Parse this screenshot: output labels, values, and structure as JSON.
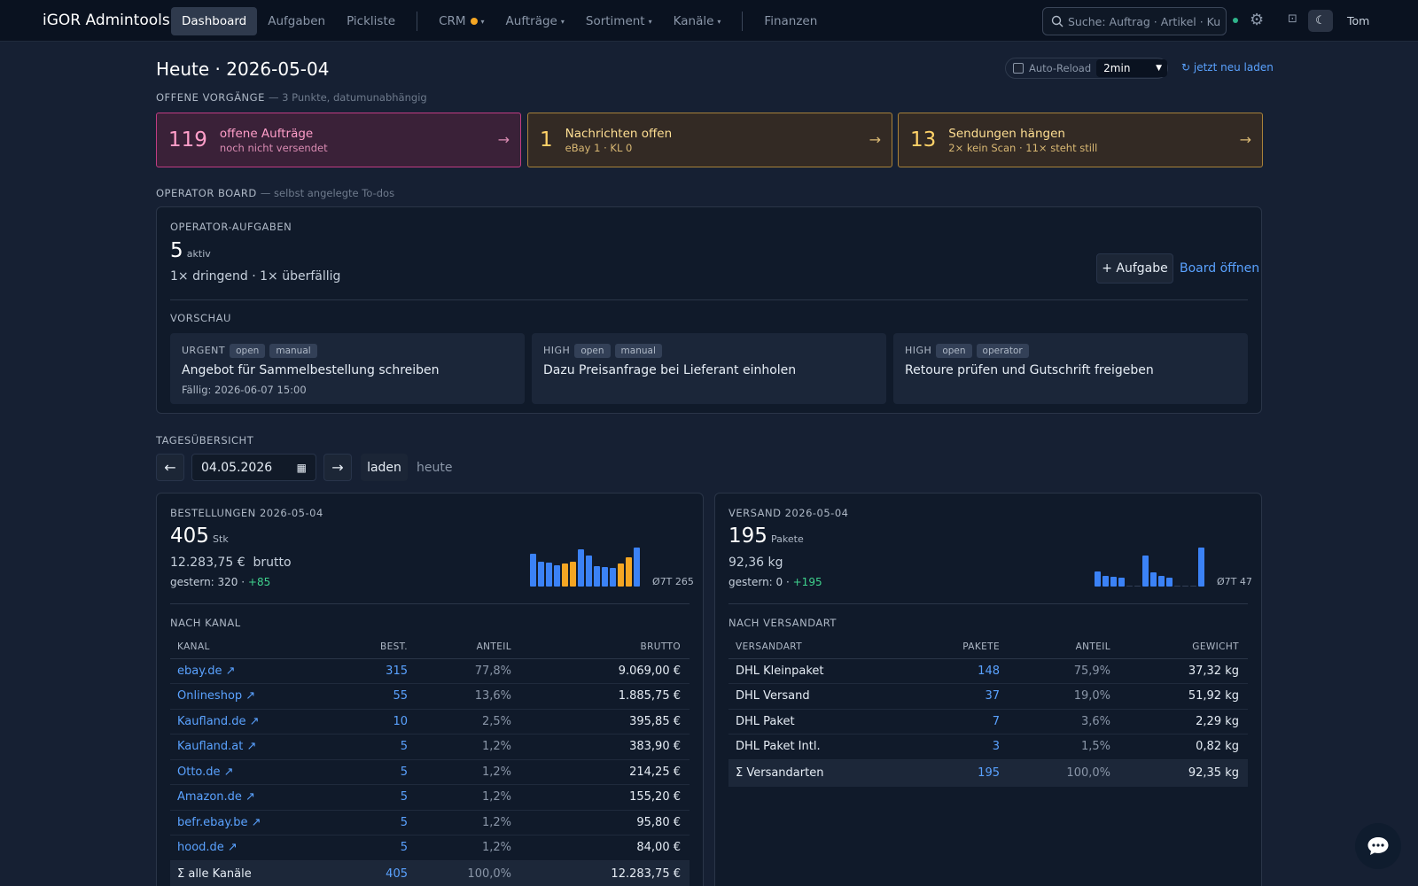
{
  "nav": {
    "brand": "iGOR Admintools",
    "items": [
      {
        "label": "Dashboard"
      },
      {
        "label": "Aufgaben"
      },
      {
        "label": "Pickliste"
      },
      {
        "label": "CRM"
      },
      {
        "label": "Aufträge"
      },
      {
        "label": "Sortiment"
      },
      {
        "label": "Kanäle"
      },
      {
        "label": "Finanzen"
      }
    ],
    "search_placeholder": "Suche: Auftrag · Artikel · Ku",
    "user": "Tom"
  },
  "header": {
    "title": "Heute · 2026-05-04",
    "autoreload_label": "Auto-Reload",
    "autoreload_value": "2min",
    "reload_now": "jetzt neu laden"
  },
  "open": {
    "label": "OFFENE VORGÄNGE",
    "sub": "— 3 Punkte, datumunabhängig",
    "alerts": [
      {
        "num": "119",
        "title": "offene Aufträge",
        "sub": "noch nicht versendet"
      },
      {
        "num": "1",
        "title": "Nachrichten offen",
        "sub": "eBay 1 · KL 0"
      },
      {
        "num": "13",
        "title": "Sendungen hängen",
        "sub": "2× kein Scan · 11× steht still"
      }
    ]
  },
  "board": {
    "label": "OPERATOR BOARD",
    "sub": "— selbst angelegte To-dos",
    "card_label": "OPERATOR-AUFGABEN",
    "count": "5",
    "count_unit": "aktiv",
    "summary": "1× dringend · 1× überfällig",
    "add_button": "+ Aufgabe",
    "open_link": "Board öffnen",
    "preview_label": "VORSCHAU",
    "tasks": [
      {
        "prio": "URGENT",
        "tags": [
          "open",
          "manual"
        ],
        "title": "Angebot für Sammelbestellung schreiben",
        "due": "Fällig: 2026-06-07 15:00"
      },
      {
        "prio": "HIGH",
        "tags": [
          "open",
          "manual"
        ],
        "title": "Dazu Preisanfrage bei Lieferant einholen"
      },
      {
        "prio": "HIGH",
        "tags": [
          "open",
          "operator"
        ],
        "title": "Retoure prüfen und Gutschrift freigeben"
      }
    ]
  },
  "day": {
    "label": "TAGESÜBERSICHT",
    "date": "04.05.2026",
    "load": "laden",
    "today": "heute",
    "prev": "←",
    "next": "→"
  },
  "orders": {
    "label": "BESTELLUNGEN 2026-05-04",
    "count": "405",
    "unit": "Stk",
    "gross_value": "12.283,75 €",
    "gross_label": "brutto",
    "yesterday_label": "gestern: 320 ·",
    "delta": "+85",
    "avg": "Ø7T 265",
    "spark": [
      37,
      28,
      27,
      24,
      26,
      28,
      42,
      35,
      23,
      22,
      21,
      26,
      33,
      44
    ],
    "spark_colors": [
      "#3b82f6",
      "#3b82f6",
      "#3b82f6",
      "#3b82f6",
      "#f5a623",
      "#f5a623",
      "#3b82f6",
      "#3b82f6",
      "#3b82f6",
      "#3b82f6",
      "#3b82f6",
      "#f5a623",
      "#f5a623",
      "#3b82f6"
    ],
    "by_label": "NACH KANAL",
    "columns": [
      "KANAL",
      "BEST.",
      "ANTEIL",
      "BRUTTO"
    ],
    "rows": [
      [
        "ebay.de ↗",
        "315",
        "77,8%",
        "9.069,00 €"
      ],
      [
        "Onlineshop ↗",
        "55",
        "13,6%",
        "1.885,75 €"
      ],
      [
        "Kaufland.de ↗",
        "10",
        "2,5%",
        "395,85 €"
      ],
      [
        "Kaufland.at ↗",
        "5",
        "1,2%",
        "383,90 €"
      ],
      [
        "Otto.de ↗",
        "5",
        "1,2%",
        "214,25 €"
      ],
      [
        "Amazon.de ↗",
        "5",
        "1,2%",
        "155,20 €"
      ],
      [
        "befr.ebay.be ↗",
        "5",
        "1,2%",
        "95,80 €"
      ],
      [
        "hood.de ↗",
        "5",
        "1,2%",
        "84,00 €"
      ]
    ],
    "sum": [
      "Σ alle Kanäle",
      "405",
      "100,0%",
      "12.283,75 €"
    ]
  },
  "shipping": {
    "label": "VERSAND 2026-05-04",
    "count": "195",
    "unit": "Pakete",
    "weight": "92,36 kg",
    "yesterday_label": "gestern: 0 ·",
    "delta": "+195",
    "avg": "Ø7T 47",
    "spark": [
      17,
      12,
      11,
      10,
      0,
      0,
      35,
      16,
      12,
      10,
      0,
      0,
      0,
      44
    ],
    "by_label": "NACH VERSANDART",
    "columns": [
      "VERSANDART",
      "PAKETE",
      "ANTEIL",
      "GEWICHT"
    ],
    "rows": [
      [
        "DHL Kleinpaket",
        "148",
        "75,9%",
        "37,32 kg"
      ],
      [
        "DHL Versand",
        "37",
        "19,0%",
        "51,92 kg"
      ],
      [
        "DHL Paket",
        "7",
        "3,6%",
        "2,29 kg"
      ],
      [
        "DHL Paket Intl.",
        "3",
        "1,5%",
        "0,82 kg"
      ]
    ],
    "sum": [
      "Σ Versandarten",
      "195",
      "100,0%",
      "92,35 kg"
    ]
  }
}
